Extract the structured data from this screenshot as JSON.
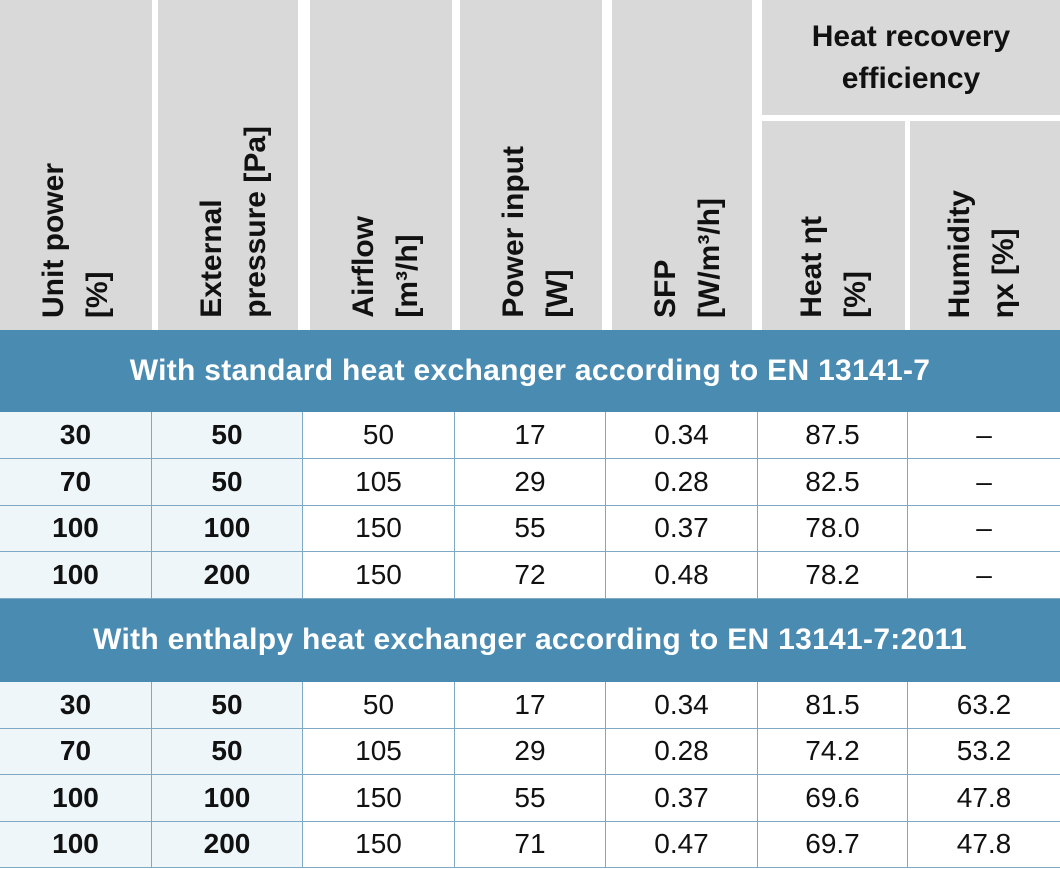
{
  "table": {
    "columns": [
      [
        "Unit power",
        "[%]"
      ],
      [
        "External",
        "pressure [Pa]"
      ],
      [
        "Airflow",
        "[m³/h]"
      ],
      [
        "Power input",
        "[W]"
      ],
      [
        "SFP",
        "[W/m³/h]"
      ],
      [
        "Heat ηt",
        "[%]"
      ],
      [
        "Humidity",
        "ηx [%]"
      ]
    ],
    "group_header": "Heat recovery efficiency",
    "sections": [
      {
        "title": "With standard heat exchanger according to EN 13141-7",
        "rows": [
          [
            "30",
            "50",
            "50",
            "17",
            "0.34",
            "87.5",
            "–"
          ],
          [
            "70",
            "50",
            "105",
            "29",
            "0.28",
            "82.5",
            "–"
          ],
          [
            "100",
            "100",
            "150",
            "55",
            "0.37",
            "78.0",
            "–"
          ],
          [
            "100",
            "200",
            "150",
            "72",
            "0.48",
            "78.2",
            "–"
          ]
        ]
      },
      {
        "title": "With enthalpy heat exchanger according to EN 13141-7:2011",
        "rows": [
          [
            "30",
            "50",
            "50",
            "17",
            "0.34",
            "81.5",
            "63.2"
          ],
          [
            "70",
            "50",
            "105",
            "29",
            "0.28",
            "74.2",
            "53.2"
          ],
          [
            "100",
            "100",
            "150",
            "55",
            "0.37",
            "69.6",
            "47.8"
          ],
          [
            "100",
            "200",
            "150",
            "71",
            "0.47",
            "69.7",
            "47.8"
          ]
        ]
      }
    ]
  }
}
